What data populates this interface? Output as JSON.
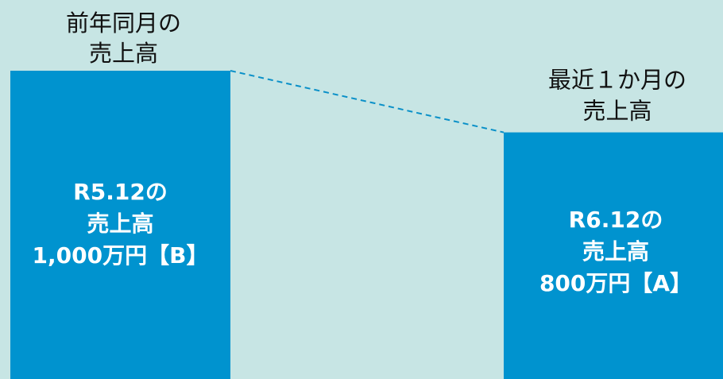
{
  "chart_data": {
    "type": "bar",
    "categories": [
      "R5.12",
      "R6.12"
    ],
    "values": [
      1000,
      800
    ],
    "unit": "万円",
    "bars": [
      {
        "caption": [
          "前年同月の",
          "売上高"
        ],
        "label": [
          "R5.12の",
          "売上高",
          "1,000万円【B】"
        ],
        "value": 1000
      },
      {
        "caption": [
          "最近１か月の",
          "売上高"
        ],
        "label": [
          "R6.12の",
          "売上高",
          "800万円【A】"
        ],
        "value": 800
      }
    ],
    "colors": {
      "background": "#c7e5e4",
      "bar": "#0093cf",
      "connector": "#0a90c8",
      "bar_text": "#ffffff",
      "caption_text": "#111111"
    },
    "legend": "none",
    "grid": false
  }
}
